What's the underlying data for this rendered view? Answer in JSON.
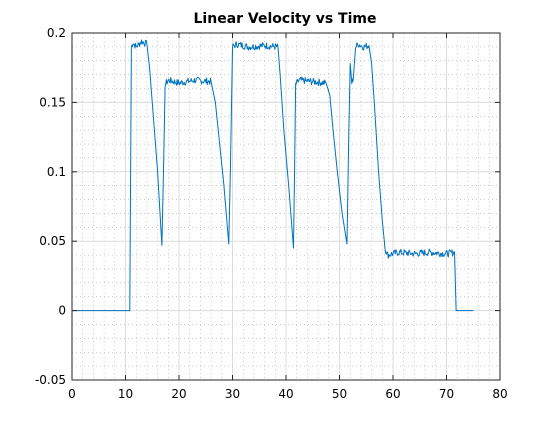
{
  "chart_data": {
    "type": "line",
    "title": "Linear Velocity vs Time",
    "xlabel": "",
    "ylabel": "",
    "xlim": [
      0,
      80
    ],
    "ylim": [
      -0.05,
      0.2
    ],
    "grid": "on (major and minor)",
    "x_ticks": [
      0,
      10,
      20,
      30,
      40,
      50,
      60,
      70,
      80
    ],
    "y_ticks": [
      -0.05,
      0,
      0.05,
      0.1,
      0.15,
      0.2
    ],
    "x_tick_labels": [
      "0",
      "10",
      "20",
      "30",
      "40",
      "50",
      "60",
      "70",
      "80"
    ],
    "y_tick_labels": [
      "-0.05",
      "0",
      "0.05",
      "0.1",
      "0.15",
      "0.2"
    ],
    "series": [
      {
        "color": "#0072bd",
        "x": [
          0,
          10.8,
          11.1,
          11.4,
          12.0,
          13.0,
          14.0,
          14.5,
          15.2,
          16.0,
          16.8,
          17.1,
          17.4,
          18.0,
          20.0,
          23.0,
          26.0,
          26.8,
          27.6,
          28.4,
          29.3,
          29.6,
          30.0,
          30.8,
          33.0,
          36.0,
          38.5,
          38.9,
          39.6,
          40.5,
          41.4,
          41.6,
          41.8,
          42.5,
          45.0,
          47.5,
          48.2,
          48.8,
          49.6,
          50.5,
          51.4,
          51.7,
          52.0,
          52.3,
          52.6,
          53.0,
          53.5,
          54.5,
          55.5,
          56.0,
          56.5,
          57.3,
          58.0,
          58.5,
          59.0,
          61.0,
          64.0,
          67.0,
          70.0,
          71.5,
          71.8,
          72.2,
          75.0
        ],
        "y": [
          0,
          0,
          0.19,
          0.193,
          0.19,
          0.194,
          0.192,
          0.175,
          0.14,
          0.1,
          0.047,
          0.1,
          0.163,
          0.166,
          0.164,
          0.166,
          0.165,
          0.15,
          0.12,
          0.09,
          0.048,
          0.1,
          0.19,
          0.192,
          0.19,
          0.191,
          0.19,
          0.17,
          0.13,
          0.09,
          0.045,
          0.1,
          0.163,
          0.166,
          0.165,
          0.164,
          0.155,
          0.13,
          0.1,
          0.07,
          0.048,
          0.12,
          0.178,
          0.164,
          0.168,
          0.19,
          0.192,
          0.19,
          0.191,
          0.178,
          0.15,
          0.1,
          0.065,
          0.045,
          0.04,
          0.042,
          0.041,
          0.042,
          0.041,
          0.042,
          0.0,
          0.0,
          0.0
        ]
      }
    ]
  }
}
